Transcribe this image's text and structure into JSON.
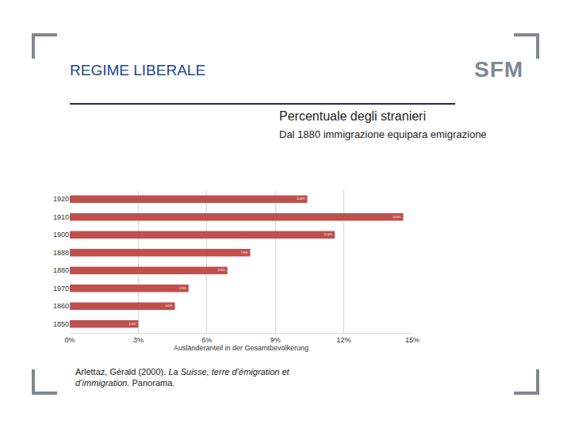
{
  "slide": {
    "heading": "REGIME LIBERALE",
    "logo": "SFM",
    "source": {
      "author": "Arlettaz, Gérald (2000).",
      "title": "La Suisse, terre d’émigration et d’immigration.",
      "publisher": "Panorama."
    }
  },
  "chart_data": {
    "type": "bar",
    "orientation": "horizontal",
    "title": "Percentuale degli stranieri",
    "subtitle": "Dal 1880 immigrazione equipara emigrazione",
    "x_label": "Ausländeranteil in der Gesamtbevölkerung",
    "categories": [
      "1850",
      "1860",
      "1970",
      "1880",
      "1888",
      "1900",
      "1910",
      "1920"
    ],
    "values": [
      3.0,
      4.6,
      5.2,
      6.9,
      7.9,
      11.6,
      14.6,
      10.4
    ],
    "value_labels": [
      "3.00%",
      "4.60%",
      "5.20%",
      "6.90%",
      "7.90%",
      "11.60%",
      "14.60%",
      "10.40%"
    ],
    "data_labels": true,
    "color": "#c0504d",
    "xlim": [
      0,
      15
    ],
    "xticks": [
      {
        "value": 0,
        "label": "0%"
      },
      {
        "value": 3,
        "label": "3%"
      },
      {
        "value": 6,
        "label": "6%"
      },
      {
        "value": 9,
        "label": "9%"
      },
      {
        "value": 12,
        "label": "12%"
      },
      {
        "value": 15,
        "label": "15%"
      }
    ],
    "grid": true
  }
}
